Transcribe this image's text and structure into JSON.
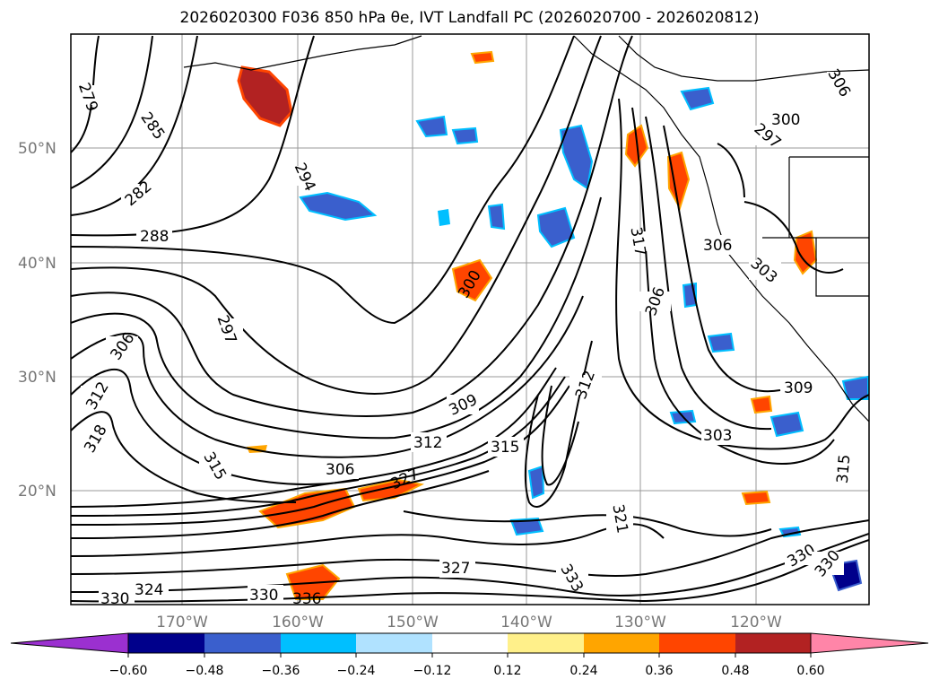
{
  "title": "2026020300 F036 850 hPa θe, IVT Landfall PC (2026020700 - 2026020812)",
  "map": {
    "lat_labels": [
      "50°N",
      "40°N",
      "30°N",
      "20°N"
    ],
    "lon_labels": [
      "170°W",
      "160°W",
      "150°W",
      "140°W",
      "130°W",
      "120°W"
    ],
    "contour_labels": [
      "279",
      "285",
      "282",
      "288",
      "294",
      "297",
      "300",
      "306",
      "312",
      "318",
      "315",
      "306",
      "309",
      "312",
      "315",
      "327",
      "312",
      "317",
      "306",
      "303",
      "309",
      "315",
      "321",
      "327",
      "333",
      "330",
      "306",
      "303",
      "300",
      "297",
      "306",
      "330",
      "324",
      "330",
      "330",
      "336"
    ],
    "land_color": "#ffffff",
    "contour_color": "#000000"
  },
  "colorbar": {
    "tick_labels": [
      "−0.60",
      "−0.48",
      "−0.36",
      "−0.24",
      "−0.12",
      "0.12",
      "0.24",
      "0.36",
      "0.48",
      "0.60"
    ],
    "colors": [
      "#9b30d0",
      "#00008b",
      "#3a5fcd",
      "#00bfff",
      "#b0e2ff",
      "#ffffff",
      "#fff08a",
      "#ffa500",
      "#ff4500",
      "#b22222",
      "#ff85a8"
    ]
  }
}
